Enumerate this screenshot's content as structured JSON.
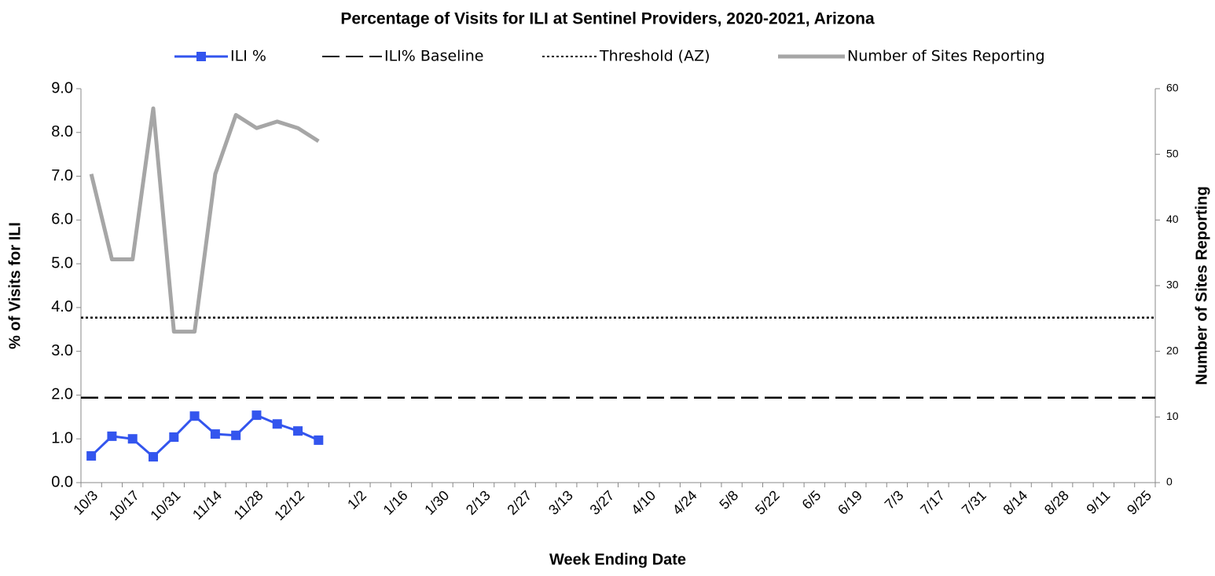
{
  "chart_data": {
    "type": "line",
    "title": "Percentage of Visits for ILI at Sentinel Providers, 2020-2021, Arizona",
    "x_label": "Week Ending Date",
    "y_label": "% of Visits for ILI",
    "y2_label": "Number of Sites Reporting",
    "categories": [
      "10/3",
      null,
      "10/17",
      null,
      "10/31",
      null,
      "11/14",
      null,
      "11/28",
      null,
      "12/12",
      null,
      null,
      "1/2",
      null,
      "1/16",
      null,
      "1/30",
      null,
      "2/13",
      null,
      "2/27",
      null,
      "3/13",
      null,
      "3/27",
      null,
      "4/10",
      null,
      "4/24",
      null,
      "5/8",
      null,
      "5/22",
      null,
      "6/5",
      null,
      "6/19",
      null,
      "7/3",
      null,
      "7/17",
      null,
      "7/31",
      null,
      "8/14",
      null,
      "8/28",
      null,
      "9/11",
      null,
      "9/25"
    ],
    "ylim": [
      0,
      9
    ],
    "yticks": [
      {
        "value": 0,
        "label": "0.0"
      },
      {
        "value": 1,
        "label": "1.0"
      },
      {
        "value": 2,
        "label": "2.0"
      },
      {
        "value": 3,
        "label": "3.0"
      },
      {
        "value": 4,
        "label": "4.0"
      },
      {
        "value": 5,
        "label": "5.0"
      },
      {
        "value": 6,
        "label": "6.0"
      },
      {
        "value": 7,
        "label": "7.0"
      },
      {
        "value": 8,
        "label": "8.0"
      },
      {
        "value": 9,
        "label": "9.0"
      }
    ],
    "y2lim": [
      0,
      60
    ],
    "y2ticks": [
      0,
      10,
      20,
      30,
      40,
      50,
      60
    ],
    "series": [
      {
        "name": "ILI %",
        "color": "#3355ee",
        "marker": "square",
        "values": [
          0.61,
          1.06,
          1.0,
          0.59,
          1.04,
          1.52,
          1.11,
          1.08,
          1.54,
          1.34,
          1.18,
          0.97,
          null,
          null,
          null,
          null,
          null,
          null,
          null,
          null,
          null,
          null,
          null,
          null,
          null,
          null,
          null,
          null,
          null,
          null,
          null,
          null,
          null,
          null,
          null,
          null,
          null,
          null,
          null,
          null,
          null,
          null,
          null,
          null,
          null,
          null,
          null,
          null,
          null,
          null,
          null,
          null
        ]
      },
      {
        "name": "ILI% Baseline",
        "color": "#000000",
        "style": "dashed",
        "value": 1.94
      },
      {
        "name": "Threshold (AZ)",
        "color": "#000000",
        "style": "dotted",
        "value": 3.77
      },
      {
        "name": "Number of Sites Reporting",
        "color": "#a6a6a6",
        "axis": "y2",
        "values": [
          47,
          34,
          34,
          57,
          23,
          23,
          47,
          56,
          54,
          55,
          54,
          52,
          null,
          null,
          null,
          null,
          null,
          null,
          null,
          null,
          null,
          null,
          null,
          null,
          null,
          null,
          null,
          null,
          null,
          null,
          null,
          null,
          null,
          null,
          null,
          null,
          null,
          null,
          null,
          null,
          null,
          null,
          null,
          null,
          null,
          null,
          null,
          null,
          null,
          null,
          null,
          null
        ]
      }
    ]
  }
}
